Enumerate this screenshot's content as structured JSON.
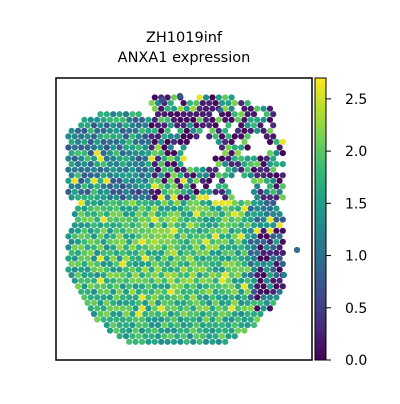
{
  "chart_data": {
    "type": "scatter",
    "title": [
      "ZH1019inf",
      "ANXA1 expression"
    ],
    "xlabel": "",
    "ylabel": "",
    "axes_ticks": "none",
    "grid": false,
    "colormap": "viridis",
    "colorbar": {
      "range": [
        0.0,
        2.7
      ],
      "ticks": [
        0.0,
        0.5,
        1.0,
        1.5,
        2.0,
        2.5
      ],
      "tick_labels": [
        "0.0",
        "0.5",
        "1.0",
        "1.5",
        "2.0",
        "2.5"
      ],
      "placement": "right"
    },
    "marker": "hexagonal spot",
    "note_series": "Spatial transcriptomics spots; expression values are approximate readings of the color map"
  },
  "colors": {
    "viridis": [
      "#440154",
      "#482878",
      "#3e4989",
      "#31688e",
      "#26828e",
      "#1f9e89",
      "#35b779",
      "#6ece58",
      "#b5de2b",
      "#fde725"
    ],
    "axis": "#000000",
    "background": "#ffffff"
  }
}
